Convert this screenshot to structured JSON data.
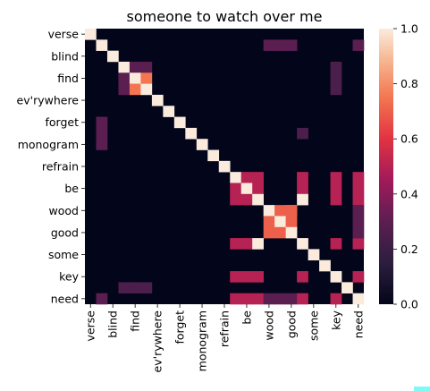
{
  "chart_data": {
    "type": "heatmap",
    "title": "someone to watch over me",
    "labels": [
      "verse",
      "blind",
      "find",
      "ev'rywhere",
      "forget",
      "monogram",
      "refrain",
      "be",
      "wood",
      "good",
      "some",
      "key",
      "need"
    ],
    "tokens": [
      "verse",
      "blind",
      "",
      "find",
      "",
      "ev'rywhere",
      "",
      "forget",
      "",
      "monogram",
      "",
      "refrain",
      "",
      "be",
      "",
      "wood",
      "",
      "good",
      "",
      "some",
      "",
      "key",
      "",
      "need",
      ""
    ],
    "cells": [
      [
        0,
        0,
        1
      ],
      [
        1,
        1,
        1
      ],
      [
        2,
        2,
        1
      ],
      [
        3,
        3,
        1
      ],
      [
        3,
        4,
        0.3
      ],
      [
        3,
        5,
        0.3
      ],
      [
        4,
        3,
        0.3
      ],
      [
        4,
        4,
        1
      ],
      [
        4,
        5,
        0.75
      ],
      [
        5,
        3,
        0.3
      ],
      [
        5,
        4,
        0.75
      ],
      [
        5,
        5,
        1
      ],
      [
        6,
        6,
        1
      ],
      [
        7,
        7,
        1
      ],
      [
        8,
        8,
        1
      ],
      [
        9,
        9,
        1
      ],
      [
        10,
        10,
        1
      ],
      [
        11,
        11,
        1
      ],
      [
        12,
        12,
        1
      ],
      [
        13,
        13,
        1
      ],
      [
        13,
        14,
        0.5
      ],
      [
        13,
        15,
        0.5
      ],
      [
        14,
        13,
        0.5
      ],
      [
        14,
        14,
        1
      ],
      [
        14,
        15,
        0.5
      ],
      [
        15,
        13,
        0.5
      ],
      [
        15,
        14,
        0.5
      ],
      [
        15,
        15,
        1
      ],
      [
        16,
        16,
        1
      ],
      [
        16,
        17,
        0.7
      ],
      [
        16,
        18,
        0.7
      ],
      [
        17,
        16,
        0.7
      ],
      [
        17,
        17,
        1
      ],
      [
        17,
        18,
        0.7
      ],
      [
        18,
        16,
        0.7
      ],
      [
        18,
        17,
        0.7
      ],
      [
        18,
        18,
        1
      ],
      [
        19,
        19,
        1
      ],
      [
        20,
        20,
        1
      ],
      [
        21,
        21,
        1
      ],
      [
        22,
        22,
        1
      ],
      [
        23,
        23,
        1
      ],
      [
        24,
        24,
        1
      ],
      [
        1,
        16,
        0.3
      ],
      [
        1,
        17,
        0.3
      ],
      [
        1,
        18,
        0.3
      ],
      [
        1,
        24,
        0.3
      ],
      [
        3,
        22,
        0.25
      ],
      [
        4,
        22,
        0.25
      ],
      [
        5,
        22,
        0.25
      ],
      [
        9,
        19,
        0.25
      ],
      [
        8,
        1,
        0.3
      ],
      [
        9,
        1,
        0.3
      ],
      [
        10,
        1,
        0.3
      ],
      [
        24,
        1,
        0.3
      ],
      [
        23,
        3,
        0.25
      ],
      [
        23,
        4,
        0.25
      ],
      [
        23,
        5,
        0.25
      ],
      [
        13,
        19,
        0.5
      ],
      [
        14,
        19,
        0.5
      ],
      [
        15,
        19,
        1
      ],
      [
        13,
        22,
        0.5
      ],
      [
        14,
        22,
        0.5
      ],
      [
        15,
        22,
        0.5
      ],
      [
        13,
        24,
        0.5
      ],
      [
        14,
        24,
        0.5
      ],
      [
        15,
        24,
        0.5
      ],
      [
        19,
        13,
        0.5
      ],
      [
        19,
        14,
        0.5
      ],
      [
        19,
        15,
        1
      ],
      [
        19,
        22,
        0.5
      ],
      [
        19,
        24,
        0.5
      ],
      [
        22,
        13,
        0.5
      ],
      [
        22,
        14,
        0.5
      ],
      [
        22,
        15,
        0.5
      ],
      [
        22,
        19,
        0.5
      ],
      [
        22,
        24,
        0.5
      ],
      [
        24,
        13,
        0.5
      ],
      [
        24,
        14,
        0.5
      ],
      [
        24,
        15,
        0.5
      ],
      [
        24,
        16,
        0.3
      ],
      [
        24,
        17,
        0.3
      ],
      [
        24,
        18,
        0.3
      ],
      [
        24,
        19,
        0.5
      ],
      [
        24,
        22,
        0.5
      ],
      [
        16,
        24,
        0.3
      ],
      [
        17,
        24,
        0.3
      ],
      [
        18,
        24,
        0.3
      ],
      [
        16,
        18,
        0.7
      ]
    ],
    "colorbar": {
      "min": 0.0,
      "max": 1.0,
      "ticks": [
        "0.0",
        "0.2",
        "0.4",
        "0.6",
        "0.8",
        "1.0"
      ]
    },
    "colormap": "rocket",
    "grid": false,
    "legend": "colorbar-right"
  }
}
